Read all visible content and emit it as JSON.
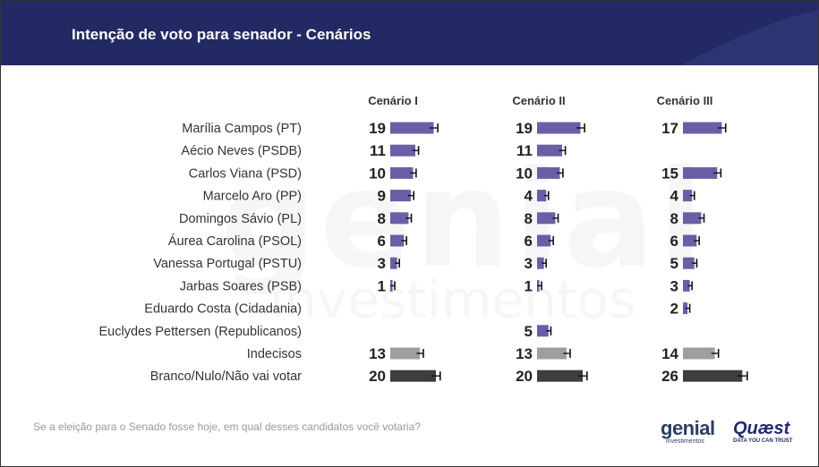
{
  "title": "Intenção de voto para senador - Cenários",
  "question": "Se a eleição para o Senado fosse hoje, em qual desses candidatos você votaria?",
  "logos": {
    "genial_main": "genial",
    "genial_sub": "investimentos",
    "quaest_main": "Quæst",
    "quaest_sub": "DATA YOU CAN TRUST"
  },
  "colors": {
    "header": "#232a63",
    "candidate_bar": "#6a5fa6",
    "undecided_bar": "#9e9e9e",
    "blank_bar": "#3d3d3d",
    "error_bar": "#111111"
  },
  "chart_data": {
    "type": "bar",
    "orientation": "horizontal",
    "categories": [
      "Marília Campos (PT)",
      "Aécio Neves (PSDB)",
      "Carlos Viana (PSD)",
      "Marcelo Aro (PP)",
      "Domingos Sávio (PL)",
      "Áurea Carolina (PSOL)",
      "Vanessa Portugal (PSTU)",
      "Jarbas Soares (PSB)",
      "Eduardo Costa (Cidadania)",
      "Euclydes Pettersen (Republicanos)",
      "Indecisos",
      "Branco/Nulo/Não vai votar"
    ],
    "series": [
      {
        "name": "Cenário I",
        "values": [
          19,
          11,
          10,
          9,
          8,
          6,
          3,
          1,
          null,
          null,
          13,
          20
        ]
      },
      {
        "name": "Cenário II",
        "values": [
          19,
          11,
          10,
          4,
          8,
          6,
          3,
          1,
          null,
          5,
          13,
          20
        ]
      },
      {
        "name": "Cenário III",
        "values": [
          17,
          null,
          15,
          4,
          8,
          6,
          5,
          3,
          2,
          null,
          14,
          26
        ]
      }
    ],
    "error_bars": true,
    "xlim": [
      0,
      30
    ]
  }
}
